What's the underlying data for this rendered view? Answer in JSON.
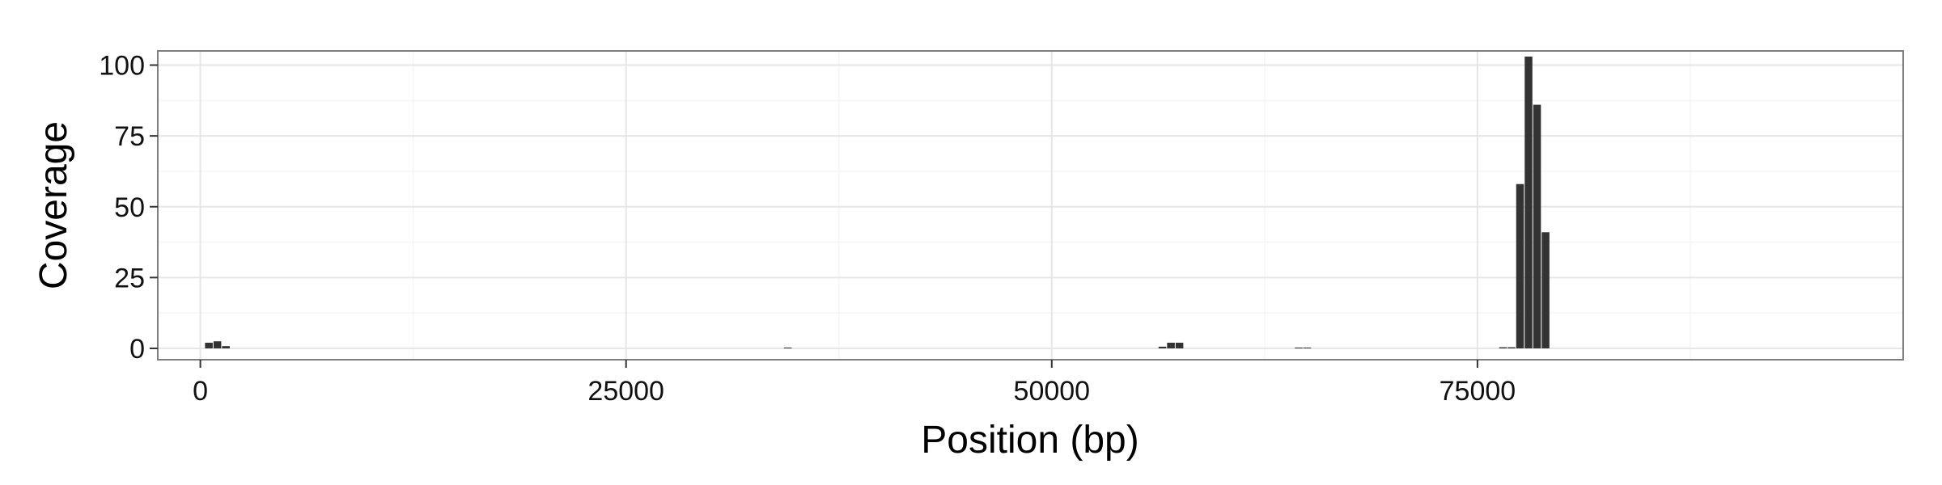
{
  "chart_data": {
    "type": "bar",
    "title": "",
    "xlabel": "Position (bp)",
    "ylabel": "Coverage",
    "xlim": [
      -2500,
      100000
    ],
    "ylim": [
      -4,
      105
    ],
    "x_ticks": [
      0,
      25000,
      50000,
      75000
    ],
    "x_tick_labels": [
      "0",
      "25000",
      "50000",
      "75000"
    ],
    "y_ticks": [
      0,
      25,
      50,
      75,
      100
    ],
    "y_tick_labels": [
      "0",
      "25",
      "50",
      "75",
      "100"
    ],
    "bin_width": 500,
    "bar_color": "#333333",
    "grid": true,
    "legend": "none",
    "bars": [
      {
        "x": 500,
        "y": 2
      },
      {
        "x": 1000,
        "y": 2.5
      },
      {
        "x": 1500,
        "y": 0.8
      },
      {
        "x": 34500,
        "y": 0.3
      },
      {
        "x": 56500,
        "y": 0.6
      },
      {
        "x": 57000,
        "y": 2
      },
      {
        "x": 57500,
        "y": 2
      },
      {
        "x": 64500,
        "y": 0.3
      },
      {
        "x": 65000,
        "y": 0.3
      },
      {
        "x": 76500,
        "y": 0.4
      },
      {
        "x": 77000,
        "y": 0.4
      },
      {
        "x": 77500,
        "y": 58
      },
      {
        "x": 78000,
        "y": 103
      },
      {
        "x": 78500,
        "y": 86
      },
      {
        "x": 79000,
        "y": 41
      }
    ]
  }
}
